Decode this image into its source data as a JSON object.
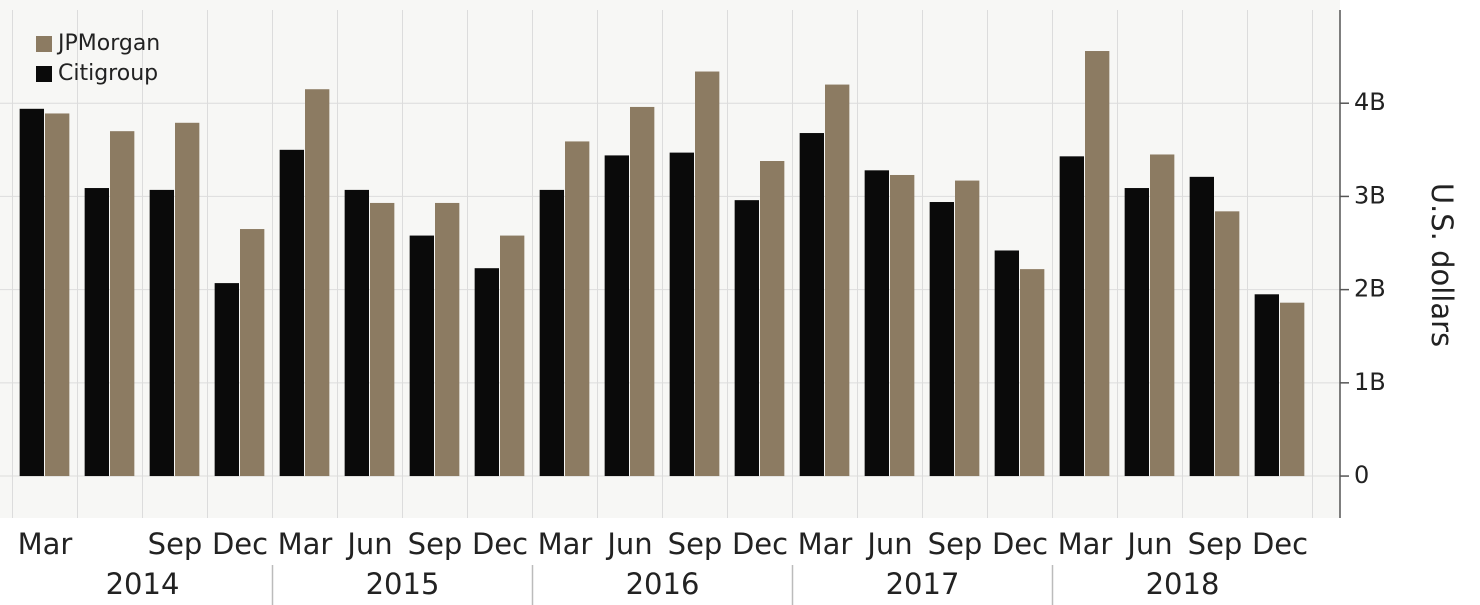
{
  "chart_data": {
    "type": "bar",
    "y_label": "U.S. dollars",
    "categories": [
      "Mar",
      null,
      "Sep",
      "Dec",
      "Mar",
      "Jun",
      "Sep",
      "Dec",
      "Mar",
      "Jun",
      "Sep",
      "Dec",
      "Mar",
      "Jun",
      "Sep",
      "Dec",
      "Mar",
      "Jun",
      "Sep",
      "Dec"
    ],
    "year_groups": [
      "2014",
      "2015",
      "2016",
      "2017",
      "2018"
    ],
    "series": [
      {
        "name": "Citigroup",
        "color": "#0a0a0a",
        "values": [
          3.94,
          3.09,
          3.07,
          2.07,
          3.5,
          3.07,
          2.58,
          2.23,
          3.07,
          3.44,
          3.47,
          2.96,
          3.68,
          3.28,
          2.94,
          2.42,
          3.43,
          3.09,
          3.21,
          1.95
        ]
      },
      {
        "name": "JPMorgan",
        "color": "#8c7b62",
        "values": [
          3.89,
          3.7,
          3.79,
          2.65,
          4.15,
          2.93,
          2.93,
          2.58,
          3.59,
          3.96,
          4.34,
          3.38,
          4.2,
          3.23,
          3.17,
          2.22,
          4.56,
          3.45,
          2.84,
          1.86
        ]
      }
    ],
    "ylim": [
      -0.45,
      5.0
    ],
    "yticks": [
      0,
      {
        "value": 1,
        "label": "1B"
      },
      {
        "value": 2,
        "label": "2B"
      },
      {
        "value": 3,
        "label": "3B"
      },
      {
        "value": 4,
        "label": "4B"
      }
    ],
    "grid": true,
    "legend": "top-left"
  }
}
